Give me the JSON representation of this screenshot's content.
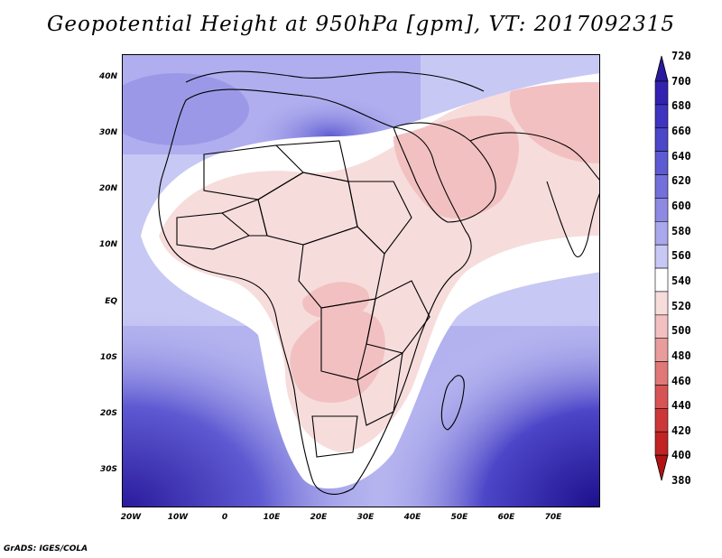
{
  "title": "Geopotential Height at 950hPa [gpm], VT: 2017092315",
  "footer": "GrADS: IGES/COLA",
  "lat_labels": [
    "40N",
    "30N",
    "20N",
    "10N",
    "EQ",
    "10S",
    "20S",
    "30S"
  ],
  "lon_labels": [
    "20W",
    "10W",
    "0",
    "10E",
    "20E",
    "30E",
    "40E",
    "50E",
    "60E",
    "70E"
  ],
  "colorbar": {
    "levels": [
      "720",
      "700",
      "680",
      "660",
      "640",
      "620",
      "600",
      "580",
      "560",
      "540",
      "520",
      "500",
      "480",
      "460",
      "440",
      "420",
      "400",
      "380"
    ],
    "colors": [
      "#2a1a9c",
      "#3322b0",
      "#3f34bf",
      "#4c46c8",
      "#5e5ad2",
      "#7470db",
      "#8e8ae3",
      "#aaa8ec",
      "#c8c8f4",
      "#ffffff",
      "#f7dcdc",
      "#f2c0c0",
      "#e89c9c",
      "#e07878",
      "#d85454",
      "#cc3838",
      "#c02424",
      "#b01414"
    ]
  },
  "map": {
    "region": "Africa",
    "variable": "Geopotential Height",
    "level": "950hPa",
    "units": "gpm",
    "valid_time": "2017092315"
  }
}
